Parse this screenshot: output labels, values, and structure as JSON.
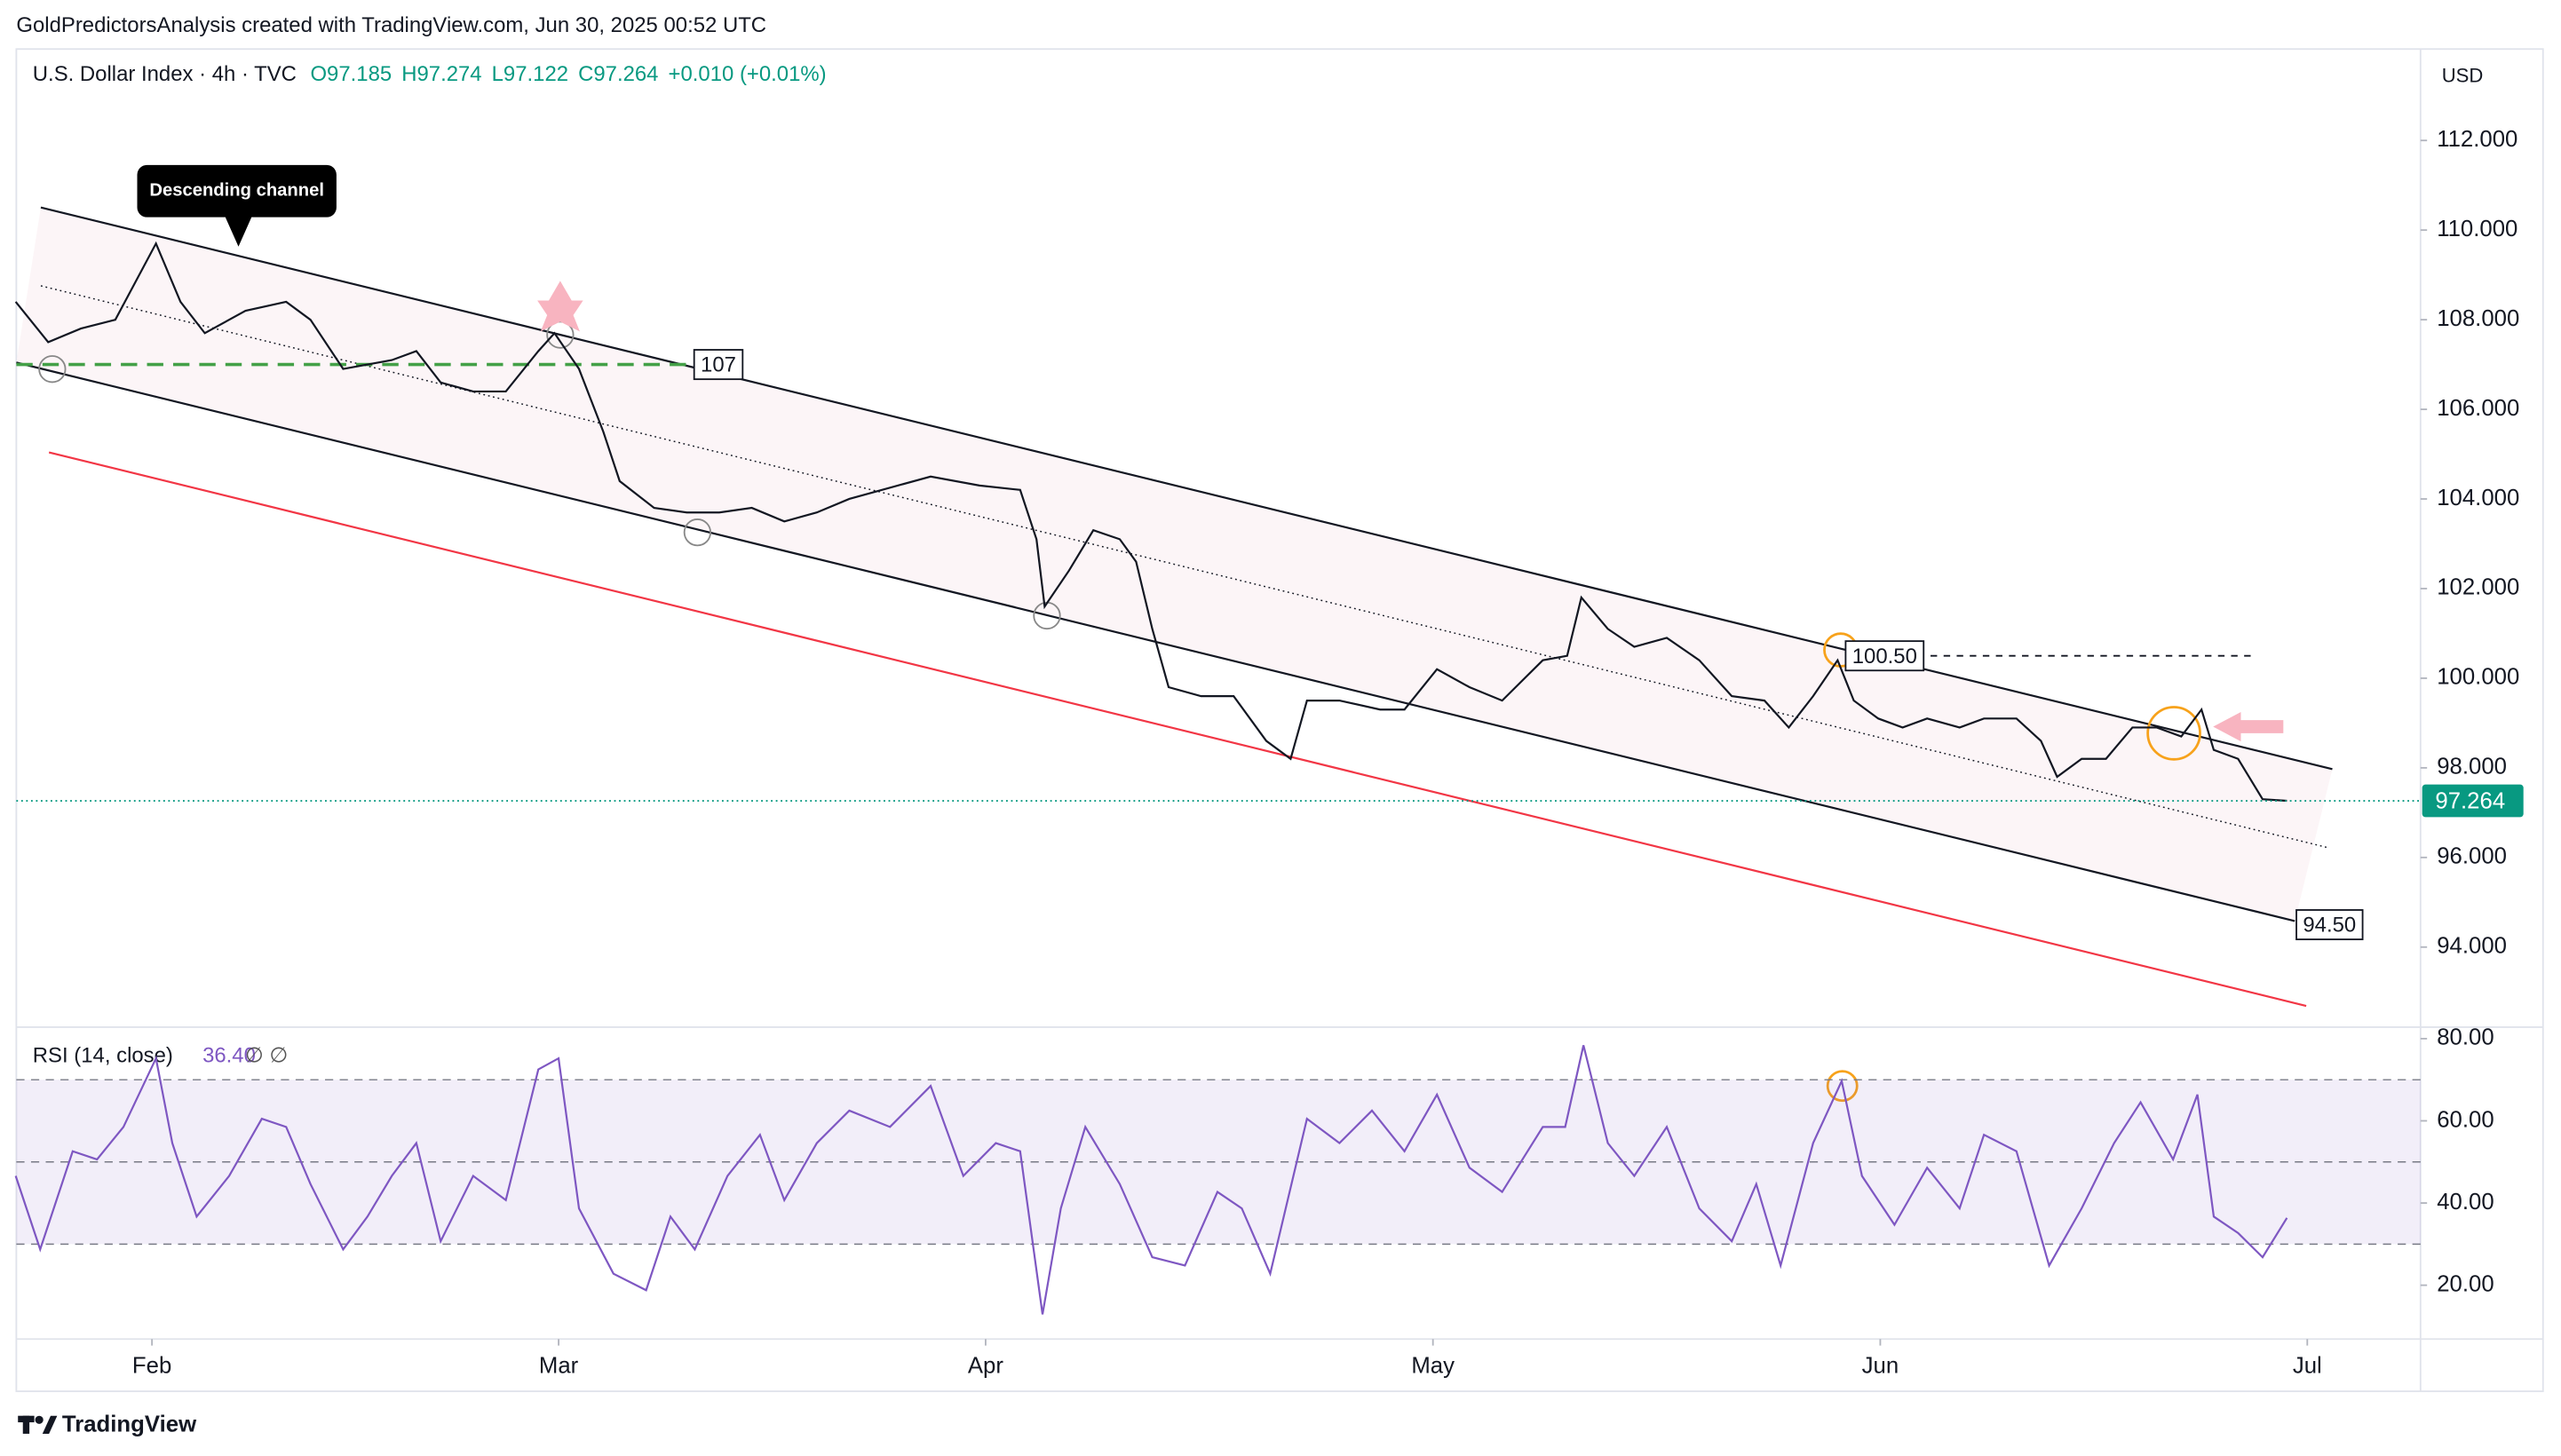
{
  "header": {
    "text": "GoldPredictorsAnalysis created with TradingView.com, Jun 30, 2025 00:52 UTC"
  },
  "footer": {
    "brand": "TradingView"
  },
  "chart_data": [
    {
      "type": "line",
      "title": "U.S. Dollar Index · 4h · TVC",
      "ohlc": [
        "O97.185",
        "H97.274",
        "L97.122",
        "C97.264"
      ],
      "change": "+0.010 (+0.01%)",
      "currency": "USD",
      "x": [
        -6.7,
        -5.1,
        -3.5,
        -1.8,
        0.2,
        1.4,
        2.6,
        4.6,
        6.6,
        7.8,
        9.4,
        11.8,
        13.0,
        14.2,
        15.8,
        17.4,
        19.0,
        19.8,
        21.0,
        22.2,
        23.0,
        24.7,
        26.3,
        27.9,
        29.5,
        31.1,
        32.7,
        34.3,
        35.9,
        38.3,
        40.7,
        42.7,
        43.5,
        43.9,
        45.1,
        46.3,
        47.6,
        48.4,
        49.2,
        50.0,
        51.6,
        53.2,
        54.8,
        56.0,
        56.8,
        58.4,
        60.4,
        61.6,
        63.2,
        64.8,
        66.4,
        68.4,
        69.6,
        70.3,
        71.6,
        72.9,
        74.5,
        76.1,
        77.7,
        79.3,
        80.5,
        81.7,
        82.9,
        83.7,
        84.9,
        86.1,
        87.3,
        88.9,
        90.1,
        91.7,
        92.9,
        93.7,
        94.9,
        96.1,
        97.4,
        98.6,
        99.8,
        100.8,
        101.4,
        102.6,
        103.8,
        105.0
      ],
      "values": [
        108.4,
        107.5,
        107.8,
        108.0,
        109.7,
        108.4,
        107.7,
        108.2,
        108.4,
        108.0,
        106.9,
        107.1,
        107.3,
        106.6,
        106.4,
        106.4,
        107.3,
        107.7,
        106.9,
        105.5,
        104.4,
        103.8,
        103.7,
        103.7,
        103.8,
        103.5,
        103.7,
        104.0,
        104.2,
        104.5,
        104.3,
        104.2,
        103.1,
        101.6,
        102.4,
        103.3,
        103.1,
        102.6,
        101.1,
        99.8,
        99.6,
        99.6,
        98.6,
        98.2,
        99.5,
        99.5,
        99.3,
        99.3,
        100.2,
        99.8,
        99.5,
        100.4,
        100.5,
        101.8,
        101.1,
        100.7,
        100.9,
        100.4,
        99.6,
        99.5,
        98.9,
        99.6,
        100.4,
        99.5,
        99.1,
        98.9,
        99.1,
        98.9,
        99.1,
        99.1,
        98.6,
        97.8,
        98.2,
        98.2,
        98.9,
        98.9,
        98.7,
        99.3,
        98.4,
        98.2,
        97.3,
        97.264
      ],
      "color": "#131722",
      "xlim": [
        -6.67,
        111.57
      ],
      "ylim": [
        92.25,
        114.04
      ],
      "yticks": [
        {
          "value": 94,
          "label": "94.000"
        },
        {
          "value": 96,
          "label": "96.000"
        },
        {
          "value": 98,
          "label": "98.000"
        },
        {
          "value": 100,
          "label": "100.000"
        },
        {
          "value": 102,
          "label": "102.000"
        },
        {
          "value": 104,
          "label": "104.000"
        },
        {
          "value": 106,
          "label": "106.000"
        },
        {
          "value": 108,
          "label": "108.000"
        },
        {
          "value": 110,
          "label": "110.000"
        },
        {
          "value": 112,
          "label": "112.000"
        }
      ],
      "last_price": 97.264,
      "last_color": "#089981",
      "annotation": "Descending channel",
      "levels": [
        107,
        {
          "value": 100.5,
          "label": "100.50"
        },
        {
          "value": 94.5,
          "label": "94.50"
        }
      ]
    },
    {
      "type": "line",
      "title": "RSI (14, close)",
      "last": {
        "value": 36.4,
        "label": "36.40"
      },
      "extra": "∅ ∅",
      "x": [
        -6.7,
        -5.5,
        -3.9,
        -2.7,
        -1.4,
        0.2,
        1.0,
        2.2,
        3.8,
        5.4,
        6.6,
        7.8,
        9.4,
        10.6,
        11.8,
        13.0,
        14.2,
        15.8,
        17.4,
        19.0,
        20.0,
        21.0,
        22.7,
        24.3,
        25.5,
        26.7,
        28.3,
        29.9,
        31.1,
        32.7,
        34.3,
        36.3,
        38.3,
        39.9,
        41.5,
        42.7,
        43.8,
        44.7,
        45.9,
        47.6,
        49.2,
        50.8,
        52.4,
        53.6,
        55.0,
        56.8,
        58.4,
        60.0,
        61.6,
        63.2,
        64.8,
        66.4,
        68.4,
        69.5,
        70.4,
        71.6,
        72.9,
        74.5,
        76.1,
        77.7,
        78.9,
        80.1,
        81.7,
        83.1,
        84.1,
        85.7,
        87.3,
        88.9,
        90.1,
        91.7,
        93.3,
        94.9,
        96.5,
        97.8,
        99.4,
        100.6,
        101.4,
        102.6,
        103.8,
        105.0
      ],
      "values": [
        46.6,
        28.7,
        52.6,
        50.6,
        58.5,
        75.2,
        54.6,
        36.7,
        46.6,
        60.5,
        58.5,
        44.6,
        28.7,
        36.7,
        46.6,
        54.6,
        30.7,
        46.6,
        40.7,
        72.5,
        75.2,
        38.7,
        22.8,
        18.8,
        36.7,
        28.7,
        46.6,
        56.6,
        40.7,
        54.6,
        62.5,
        58.5,
        68.5,
        46.6,
        54.6,
        52.6,
        12.9,
        38.7,
        58.5,
        44.6,
        26.8,
        24.8,
        42.7,
        38.7,
        22.8,
        60.5,
        54.6,
        62.5,
        52.6,
        66.4,
        48.6,
        42.7,
        58.5,
        58.5,
        78.4,
        54.6,
        46.6,
        58.5,
        38.7,
        30.7,
        44.6,
        24.8,
        54.6,
        69.7,
        46.6,
        34.7,
        48.6,
        38.7,
        56.6,
        52.6,
        24.8,
        38.7,
        54.6,
        64.5,
        50.6,
        66.4,
        36.7,
        32.7,
        26.8,
        36.4
      ],
      "color": "#7e57c2",
      "xlim": [
        -6.67,
        111.57
      ],
      "ylim": [
        6.9,
        82.4
      ],
      "yticks": [
        {
          "value": 20,
          "label": "20.00"
        },
        {
          "value": 40,
          "label": "40.00"
        },
        {
          "value": 60,
          "label": "60.00"
        },
        {
          "value": 80,
          "label": "80.00"
        }
      ],
      "bands": [
        30,
        50,
        70
      ],
      "xticks": [
        {
          "value": 0,
          "label": "Feb"
        },
        {
          "value": 20,
          "label": "Mar"
        },
        {
          "value": 41,
          "label": "Apr"
        },
        {
          "value": 63,
          "label": "May"
        },
        {
          "value": 85,
          "label": "Jun"
        },
        {
          "value": 106,
          "label": "Jul"
        }
      ]
    }
  ]
}
